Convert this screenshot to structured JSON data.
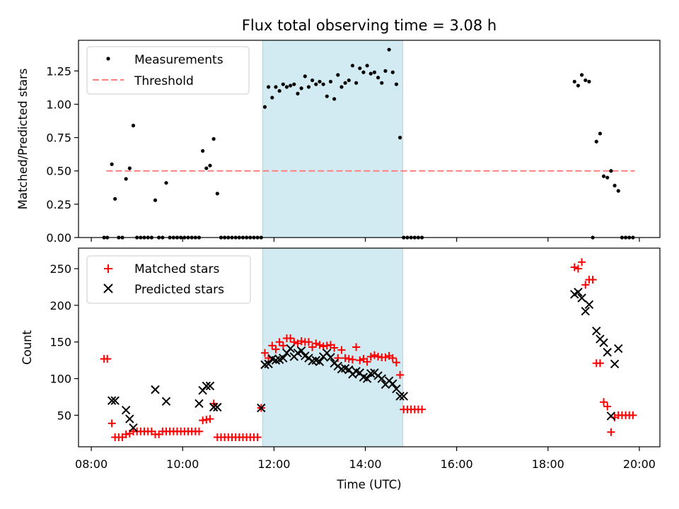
{
  "figure_title": "Flux total observing time = 3.08 h",
  "chart_data": [
    {
      "type": "scatter",
      "ylabel": "Matched/Predicted stars",
      "xlim": [
        7.72,
        20.45
      ],
      "ylim": [
        0,
        1.48
      ],
      "yticks": [
        "0.00",
        "0.25",
        "0.50",
        "0.75",
        "1.00",
        "1.25"
      ],
      "shaded_span": {
        "from": 11.75,
        "to": 14.82,
        "color": "#add8e6"
      },
      "legend": {
        "position": "top-left",
        "entries": [
          "Measurements",
          "Threshold"
        ]
      },
      "threshold": {
        "name": "Threshold",
        "value": 0.5,
        "x_range": [
          8.33,
          19.9
        ],
        "color": "#ff7f7f"
      },
      "measurements": {
        "name": "Measurements",
        "color": "#000000",
        "x": [
          8.28,
          8.35,
          8.45,
          8.52,
          8.6,
          8.68,
          8.76,
          8.84,
          8.92,
          9.0,
          9.08,
          9.16,
          9.24,
          9.32,
          9.4,
          9.48,
          9.56,
          9.64,
          9.72,
          9.8,
          9.88,
          9.96,
          10.04,
          10.12,
          10.2,
          10.28,
          10.36,
          10.44,
          10.52,
          10.6,
          10.68,
          10.76,
          10.84,
          10.92,
          11.0,
          11.08,
          11.16,
          11.24,
          11.32,
          11.4,
          11.48,
          11.56,
          11.64,
          11.72,
          11.8,
          11.88,
          11.96,
          12.04,
          12.12,
          12.2,
          12.28,
          12.36,
          12.44,
          12.52,
          12.6,
          12.68,
          12.76,
          12.84,
          12.92,
          13.0,
          13.08,
          13.16,
          13.24,
          13.32,
          13.4,
          13.48,
          13.56,
          13.64,
          13.72,
          13.8,
          13.88,
          13.96,
          14.04,
          14.12,
          14.2,
          14.28,
          14.36,
          14.44,
          14.52,
          14.6,
          14.68,
          14.76,
          14.84,
          14.92,
          15.0,
          15.08,
          15.16,
          15.24,
          18.58,
          18.66,
          18.74,
          18.82,
          18.9,
          18.98,
          19.06,
          19.14,
          19.22,
          19.3,
          19.38,
          19.46,
          19.54,
          19.62,
          19.7,
          19.78,
          19.86
        ],
        "y": [
          0,
          0,
          0.55,
          0.29,
          0,
          0,
          0.44,
          0.52,
          0.84,
          0,
          0,
          0,
          0,
          0,
          0.28,
          0,
          0,
          0.41,
          0,
          0,
          0,
          0,
          0,
          0,
          0,
          0,
          0,
          0.65,
          0.52,
          0.54,
          0.74,
          0.33,
          0,
          0,
          0,
          0,
          0,
          0,
          0,
          0,
          0,
          0,
          0,
          0,
          0.98,
          1.13,
          1.05,
          1.13,
          1.1,
          1.15,
          1.13,
          1.14,
          1.15,
          1.08,
          1.12,
          1.21,
          1.13,
          1.18,
          1.15,
          1.17,
          1.15,
          1.06,
          1.17,
          1.04,
          1.22,
          1.13,
          1.16,
          1.18,
          1.29,
          1.16,
          1.27,
          1.24,
          1.29,
          1.23,
          1.24,
          1.2,
          1.16,
          1.25,
          1.41,
          1.24,
          1.15,
          0.75,
          0,
          0,
          0,
          0,
          0,
          0,
          1.17,
          1.14,
          1.22,
          1.18,
          1.17,
          0,
          0.72,
          0.78,
          0.46,
          0.45,
          0.5,
          0.39,
          0.35,
          0,
          0,
          0,
          0
        ]
      }
    },
    {
      "type": "scatter",
      "xlabel": "Time (UTC)",
      "ylabel": "Count",
      "xlim": [
        7.72,
        20.45
      ],
      "ylim": [
        7,
        278
      ],
      "xticks": [
        "08:00",
        "10:00",
        "12:00",
        "14:00",
        "16:00",
        "18:00",
        "20:00"
      ],
      "yticks": [
        "50",
        "100",
        "150",
        "200",
        "250"
      ],
      "shaded_span": {
        "from": 11.75,
        "to": 14.82,
        "color": "#add8e6"
      },
      "legend": {
        "position": "top-left",
        "entries": [
          "Matched stars",
          "Predicted stars"
        ]
      },
      "series": [
        {
          "name": "Matched stars",
          "marker": "+",
          "color": "#ff0000",
          "x": [
            8.28,
            8.35,
            8.45,
            8.52,
            8.6,
            8.68,
            8.76,
            8.84,
            8.92,
            9.0,
            9.08,
            9.16,
            9.24,
            9.32,
            9.4,
            9.48,
            9.56,
            9.64,
            9.72,
            9.8,
            9.88,
            9.96,
            10.04,
            10.12,
            10.2,
            10.28,
            10.36,
            10.44,
            10.52,
            10.6,
            10.68,
            10.76,
            10.84,
            10.92,
            11.0,
            11.08,
            11.16,
            11.24,
            11.32,
            11.4,
            11.48,
            11.56,
            11.64,
            11.72,
            11.8,
            11.88,
            11.96,
            12.04,
            12.12,
            12.2,
            12.28,
            12.36,
            12.44,
            12.52,
            12.6,
            12.68,
            12.76,
            12.84,
            12.92,
            13.0,
            13.08,
            13.16,
            13.24,
            13.32,
            13.4,
            13.48,
            13.56,
            13.64,
            13.72,
            13.8,
            13.88,
            13.96,
            14.04,
            14.12,
            14.2,
            14.28,
            14.36,
            14.44,
            14.52,
            14.6,
            14.68,
            14.76,
            14.84,
            14.92,
            15.0,
            15.08,
            15.16,
            15.24,
            18.58,
            18.66,
            18.74,
            18.82,
            18.9,
            18.98,
            19.06,
            19.14,
            19.22,
            19.3,
            19.38,
            19.46,
            19.54,
            19.62,
            19.7,
            19.78,
            19.86
          ],
          "y": [
            127,
            127,
            39,
            20,
            20,
            20,
            24,
            25,
            28,
            28,
            28,
            28,
            28,
            28,
            24,
            24,
            28,
            28,
            28,
            28,
            28,
            28,
            28,
            28,
            28,
            28,
            28,
            43,
            44,
            45,
            66,
            20,
            20,
            20,
            20,
            20,
            20,
            20,
            20,
            20,
            20,
            20,
            20,
            60,
            135,
            128,
            145,
            140,
            150,
            145,
            155,
            155,
            150,
            148,
            151,
            150,
            150,
            143,
            148,
            146,
            144,
            145,
            146,
            142,
            128,
            139,
            128,
            127,
            126,
            143,
            125,
            127,
            123,
            130,
            132,
            130,
            129,
            129,
            131,
            128,
            122,
            105,
            58,
            58,
            58,
            58,
            58,
            58,
            252,
            250,
            259,
            228,
            235,
            235,
            121,
            121,
            68,
            62,
            27,
            47,
            50,
            50,
            50,
            50,
            50
          ]
        },
        {
          "name": "Predicted stars",
          "marker": "x",
          "color": "#000000",
          "x": [
            8.45,
            8.52,
            8.76,
            8.84,
            8.92,
            9.4,
            9.64,
            10.36,
            10.44,
            10.52,
            10.6,
            10.68,
            10.76,
            11.72,
            11.8,
            11.88,
            11.96,
            12.04,
            12.12,
            12.2,
            12.28,
            12.36,
            12.44,
            12.52,
            12.6,
            12.68,
            12.76,
            12.84,
            12.92,
            13.0,
            13.08,
            13.16,
            13.24,
            13.32,
            13.4,
            13.48,
            13.56,
            13.64,
            13.72,
            13.8,
            13.88,
            13.96,
            14.04,
            14.12,
            14.2,
            14.28,
            14.36,
            14.44,
            14.52,
            14.6,
            14.68,
            14.76,
            14.84,
            18.58,
            18.66,
            18.74,
            18.82,
            18.9,
            19.06,
            19.14,
            19.22,
            19.3,
            19.38,
            19.46,
            19.54
          ],
          "y": [
            70,
            70,
            57,
            45,
            33,
            85,
            69,
            66,
            84,
            90,
            90,
            61,
            61,
            60,
            119,
            120,
            127,
            125,
            126,
            128,
            135,
            141,
            130,
            135,
            138,
            131,
            128,
            124,
            125,
            123,
            130,
            135,
            129,
            121,
            117,
            113,
            114,
            112,
            106,
            110,
            108,
            102,
            100,
            107,
            108,
            104,
            100,
            92,
            97,
            93,
            86,
            76,
            76,
            215,
            218,
            210,
            192,
            201,
            165,
            154,
            149,
            136,
            49,
            120,
            141
          ]
        }
      ]
    }
  ]
}
